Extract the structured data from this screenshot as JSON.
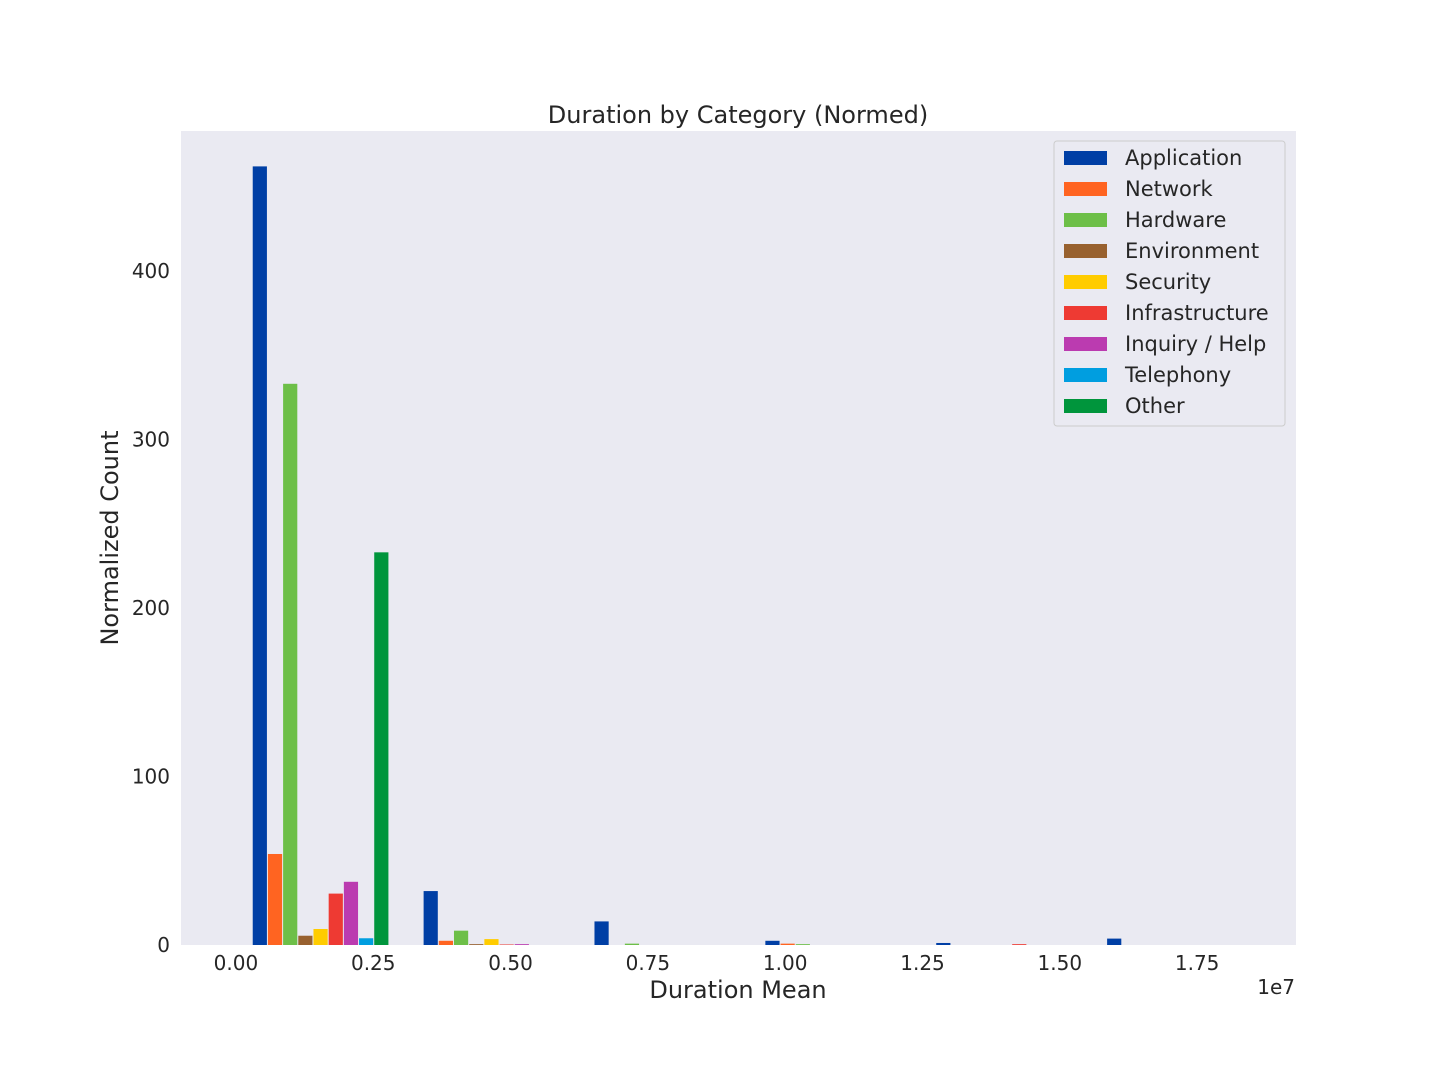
{
  "chart_data": {
    "type": "bar",
    "title": "Duration by Category (Normed)",
    "xlabel": "Duration Mean",
    "ylabel": "Normalized Count",
    "x_offset_label": "1e7",
    "xlim": [
      -0.1,
      1.93
    ],
    "ylim": [
      0,
      483
    ],
    "x_ticks": [
      {
        "value": 0.0,
        "label": "0.00"
      },
      {
        "value": 0.25,
        "label": "0.25"
      },
      {
        "value": 0.5,
        "label": "0.50"
      },
      {
        "value": 0.75,
        "label": "0.75"
      },
      {
        "value": 1.0,
        "label": "1.00"
      },
      {
        "value": 1.25,
        "label": "1.25"
      },
      {
        "value": 1.5,
        "label": "1.50"
      },
      {
        "value": 1.75,
        "label": "1.75"
      }
    ],
    "y_ticks": [
      {
        "value": 0,
        "label": "0"
      },
      {
        "value": 100,
        "label": "100"
      },
      {
        "value": 200,
        "label": "200"
      },
      {
        "value": 300,
        "label": "300"
      },
      {
        "value": 400,
        "label": "400"
      }
    ],
    "grid": false,
    "legend_position": "top-right",
    "bin_starts": [
      0.0306,
      0.3417,
      0.6528,
      0.9639,
      1.275,
      1.5861
    ],
    "bin_width": 0.3111,
    "bar_width": 0.02765,
    "series": [
      {
        "name": "Application",
        "color": "#003fa5",
        "values": [
          462,
          32,
          14,
          2.5,
          1.2,
          3.8
        ]
      },
      {
        "name": "Network",
        "color": "#ff6421",
        "values": [
          54,
          2.5,
          0,
          0.8,
          0,
          0
        ]
      },
      {
        "name": "Hardware",
        "color": "#6dbf48",
        "values": [
          333,
          8.5,
          0.8,
          0.5,
          0,
          0
        ]
      },
      {
        "name": "Environment",
        "color": "#98612f",
        "values": [
          5.5,
          0.5,
          0,
          0,
          0,
          0
        ]
      },
      {
        "name": "Security",
        "color": "#ffcc00",
        "values": [
          9.5,
          3.5,
          0,
          0,
          0,
          0
        ]
      },
      {
        "name": "Infrastructure",
        "color": "#ee3a33",
        "values": [
          30.5,
          0.3,
          0,
          0,
          0.5,
          0
        ]
      },
      {
        "name": "Inquiry / Help",
        "color": "#bb3bb0",
        "values": [
          37.5,
          0.5,
          0,
          0,
          0,
          0
        ]
      },
      {
        "name": "Telephony",
        "color": "#009ee0",
        "values": [
          4,
          0,
          0,
          0,
          0,
          0
        ]
      },
      {
        "name": "Other",
        "color": "#00953c",
        "values": [
          233,
          0,
          0,
          0,
          0,
          0
        ]
      }
    ],
    "colors": {
      "plot_background": "#eaeaf2",
      "legend_background": "#eaeaf2",
      "legend_border": "#cccccc",
      "text": "#262626"
    }
  }
}
